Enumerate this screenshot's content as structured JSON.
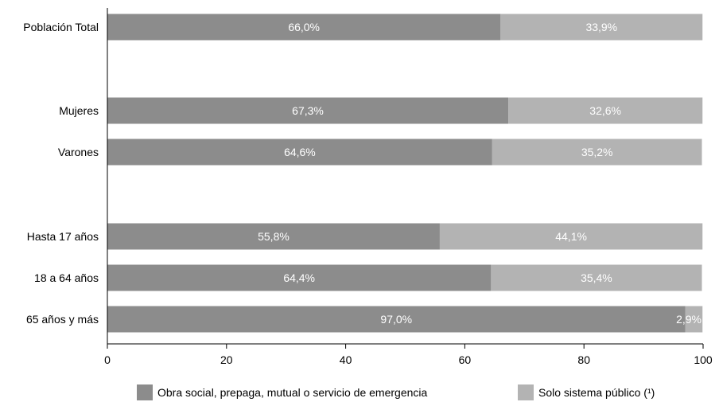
{
  "chart_data": {
    "type": "bar",
    "orientation": "horizontal",
    "stacked": true,
    "categories": [
      "Población Total",
      "Mujeres",
      "Varones",
      "Hasta 17 años",
      "18 a 64 años",
      "65 años y más"
    ],
    "series": [
      {
        "name": "Obra social, prepaga, mutual o servicio de emergencia",
        "values": [
          66.0,
          67.3,
          64.6,
          55.8,
          64.4,
          97.0
        ],
        "labels": [
          "66,0%",
          "67,3%",
          "64,6%",
          "55,8%",
          "64,4%",
          "97,0%"
        ],
        "color": "#8c8c8c"
      },
      {
        "name": "Solo sistema público (¹)",
        "values": [
          33.9,
          32.6,
          35.2,
          44.1,
          35.4,
          2.9
        ],
        "labels": [
          "33,9%",
          "32,6%",
          "35,2%",
          "44,1%",
          "35,4%",
          "2,9%"
        ],
        "color": "#b3b3b3"
      }
    ],
    "xlim": [
      0,
      100
    ],
    "xticks": [
      0,
      20,
      40,
      60,
      80,
      100
    ],
    "xticklabels": [
      "0",
      "20",
      "40",
      "60",
      "80",
      "100"
    ],
    "grid": false,
    "legend": "bottom"
  }
}
